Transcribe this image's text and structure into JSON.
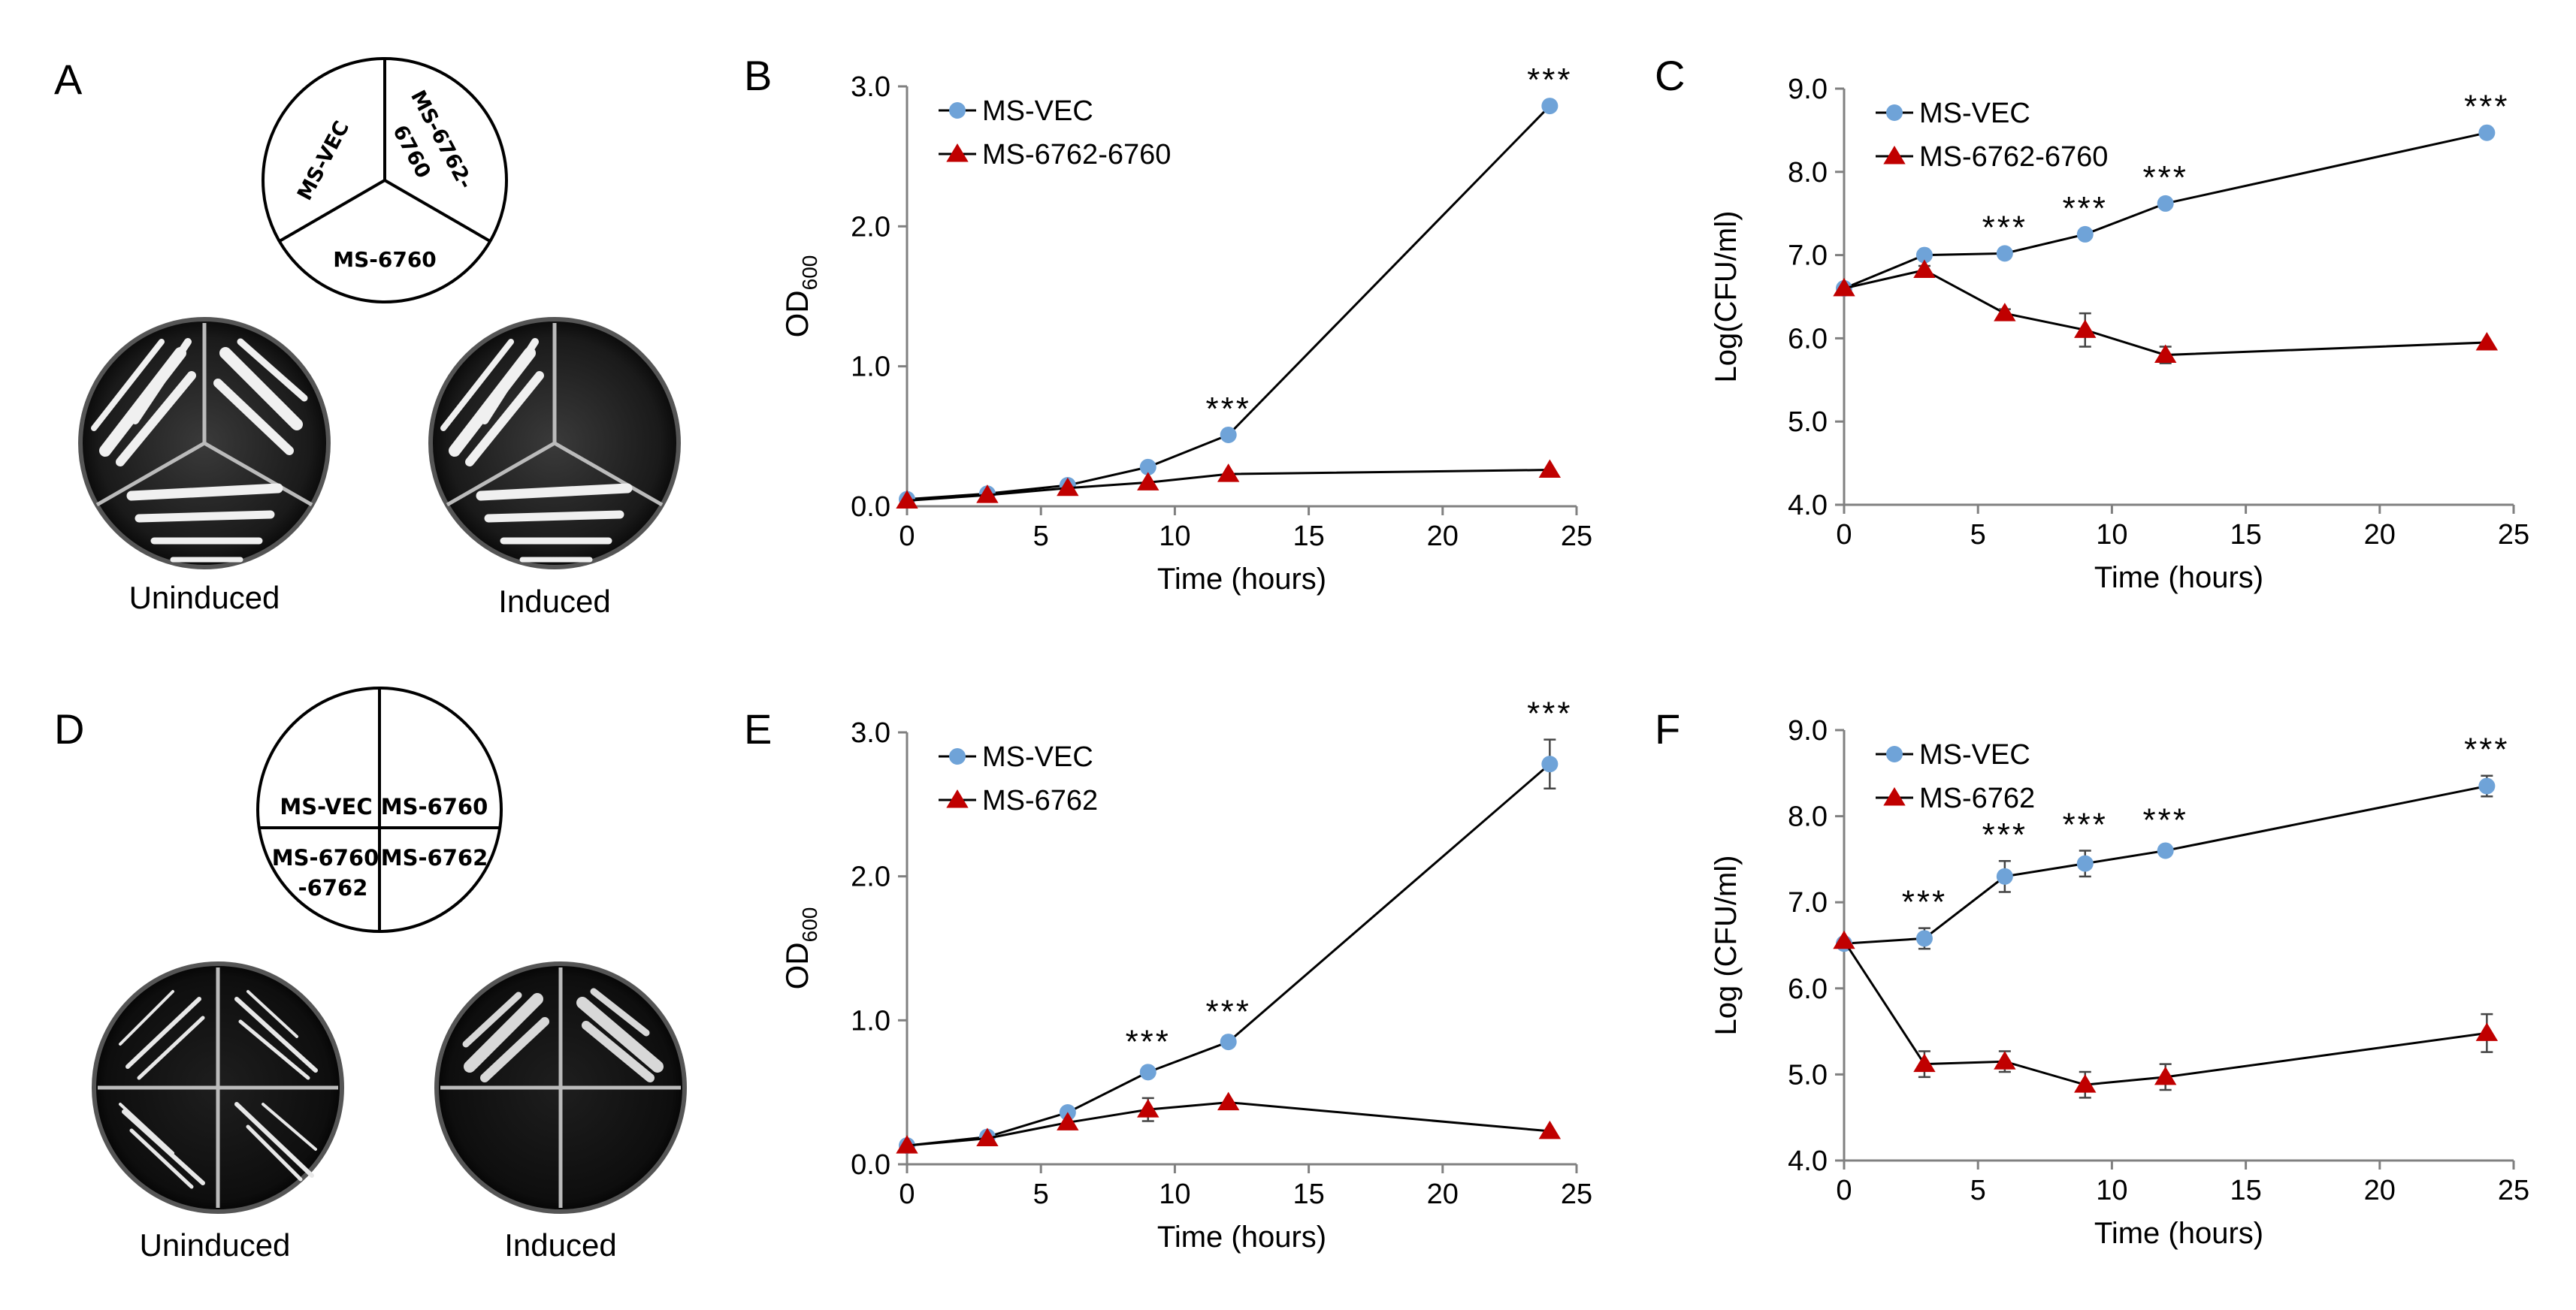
{
  "panels": {
    "A": {
      "letter": "A",
      "sectors": [
        "MS-VEC",
        "MS-6762-",
        "6760",
        "MS-6760"
      ],
      "uninduced": "Uninduced",
      "induced": "Induced"
    },
    "D": {
      "letter": "D",
      "sectors": [
        "MS-VEC",
        "MS-6760",
        "MS-6760",
        "-6762",
        "MS-6762"
      ],
      "uninduced": "Uninduced",
      "induced": "Induced"
    }
  },
  "colors": {
    "ms_vec": "#6fa3d8",
    "mutant": "#c00000",
    "line": "#000000",
    "axis": "#808080"
  },
  "chart_data": [
    {
      "id": "B",
      "letter": "B",
      "type": "line",
      "ylabel_main": "OD",
      "ylabel_sub": "600",
      "ylabel": "",
      "xlabel": "Time (hours)",
      "xlim": [
        0,
        25
      ],
      "ylim": [
        0,
        3
      ],
      "xticks": [
        0,
        5,
        10,
        15,
        20,
        25
      ],
      "xtick_labels": [
        "0",
        "5",
        "10",
        "15",
        "20",
        "25"
      ],
      "yticks": [
        0,
        1,
        2,
        3
      ],
      "ytick_labels": [
        "0.0",
        "1.0",
        "2.0",
        "3.0"
      ],
      "x": [
        0,
        3,
        6,
        9,
        12,
        24
      ],
      "series": [
        {
          "name": "MS-VEC",
          "marker": "circle",
          "values": [
            0.05,
            0.09,
            0.15,
            0.28,
            0.51,
            2.86
          ],
          "errors": [
            0,
            0,
            0,
            0,
            0,
            0
          ]
        },
        {
          "name": "MS-6762-6760",
          "marker": "triangle",
          "values": [
            0.04,
            0.08,
            0.13,
            0.17,
            0.23,
            0.26
          ],
          "errors": [
            0,
            0,
            0,
            0,
            0,
            0
          ]
        }
      ],
      "annotations": [
        {
          "x": 12,
          "y": 0.51,
          "text": "***"
        },
        {
          "x": 24,
          "y": 2.86,
          "text": "***"
        }
      ]
    },
    {
      "id": "C",
      "letter": "C",
      "type": "line",
      "ylabel": "Log(CFU/ml)",
      "xlabel": "Time (hours)",
      "xlim": [
        0,
        25
      ],
      "ylim": [
        4,
        9
      ],
      "xticks": [
        0,
        5,
        10,
        15,
        20,
        25
      ],
      "xtick_labels": [
        "0",
        "5",
        "10",
        "15",
        "20",
        "25"
      ],
      "yticks": [
        4,
        5,
        6,
        7,
        8,
        9
      ],
      "ytick_labels": [
        "4.0",
        "5.0",
        "6.0",
        "7.0",
        "8.0",
        "9.0"
      ],
      "x": [
        0,
        3,
        6,
        9,
        12,
        24
      ],
      "series": [
        {
          "name": "MS-VEC",
          "marker": "circle",
          "values": [
            6.6,
            7.0,
            7.02,
            7.25,
            7.62,
            8.47
          ],
          "errors": [
            0,
            0,
            0,
            0,
            0,
            0
          ]
        },
        {
          "name": "MS-6762-6760",
          "marker": "triangle",
          "values": [
            6.6,
            6.82,
            6.3,
            6.1,
            5.8,
            5.95
          ],
          "errors": [
            0,
            0.05,
            0.05,
            0.2,
            0.1,
            0
          ]
        }
      ],
      "annotations": [
        {
          "x": 6,
          "y": 7.02,
          "text": "***"
        },
        {
          "x": 9,
          "y": 7.25,
          "text": "***"
        },
        {
          "x": 12,
          "y": 7.62,
          "text": "***"
        },
        {
          "x": 24,
          "y": 8.47,
          "text": "***"
        }
      ]
    },
    {
      "id": "E",
      "letter": "E",
      "type": "line",
      "ylabel_main": "OD",
      "ylabel_sub": "600",
      "ylabel": "",
      "xlabel": "Time (hours)",
      "xlim": [
        0,
        25
      ],
      "ylim": [
        0,
        3
      ],
      "xticks": [
        0,
        5,
        10,
        15,
        20,
        25
      ],
      "xtick_labels": [
        "0",
        "5",
        "10",
        "15",
        "20",
        "25"
      ],
      "yticks": [
        0,
        1,
        2,
        3
      ],
      "ytick_labels": [
        "0.0",
        "1.0",
        "2.0",
        "3.0"
      ],
      "x": [
        0,
        3,
        6,
        9,
        12,
        24
      ],
      "series": [
        {
          "name": "MS-VEC",
          "marker": "circle",
          "values": [
            0.13,
            0.19,
            0.36,
            0.64,
            0.85,
            2.78
          ],
          "errors": [
            0,
            0,
            0,
            0.03,
            0.03,
            0.17
          ]
        },
        {
          "name": "MS-6762",
          "marker": "triangle",
          "values": [
            0.13,
            0.18,
            0.29,
            0.38,
            0.43,
            0.23
          ],
          "errors": [
            0,
            0,
            0,
            0.08,
            0,
            0
          ]
        }
      ],
      "annotations": [
        {
          "x": 9,
          "y": 0.64,
          "text": "***"
        },
        {
          "x": 12,
          "y": 0.85,
          "text": "***"
        },
        {
          "x": 24,
          "y": 2.78,
          "text": "***"
        }
      ]
    },
    {
      "id": "F",
      "letter": "F",
      "type": "line",
      "ylabel": "Log (CFU/ml)",
      "xlabel": "Time (hours)",
      "xlim": [
        0,
        25
      ],
      "ylim": [
        4,
        9
      ],
      "xticks": [
        0,
        5,
        10,
        15,
        20,
        25
      ],
      "xtick_labels": [
        "0",
        "5",
        "10",
        "15",
        "20",
        "25"
      ],
      "yticks": [
        4,
        5,
        6,
        7,
        8,
        9
      ],
      "ytick_labels": [
        "4.0",
        "5.0",
        "6.0",
        "7.0",
        "8.0",
        "9.0"
      ],
      "x": [
        0,
        3,
        6,
        9,
        12,
        24
      ],
      "series": [
        {
          "name": "MS-VEC",
          "marker": "circle",
          "values": [
            6.52,
            6.58,
            7.3,
            7.45,
            7.6,
            8.35
          ],
          "errors": [
            0,
            0.12,
            0.18,
            0.15,
            0.05,
            0.12
          ]
        },
        {
          "name": "MS-6762",
          "marker": "triangle",
          "values": [
            6.55,
            5.12,
            5.15,
            4.88,
            4.97,
            5.48
          ],
          "errors": [
            0,
            0.15,
            0.12,
            0.15,
            0.15,
            0.22
          ]
        }
      ],
      "annotations": [
        {
          "x": 3,
          "y": 6.58,
          "text": "***"
        },
        {
          "x": 6,
          "y": 7.3,
          "text": "***"
        },
        {
          "x": 9,
          "y": 7.45,
          "text": "***"
        },
        {
          "x": 12,
          "y": 7.6,
          "text": "***"
        },
        {
          "x": 24,
          "y": 8.35,
          "text": "***"
        }
      ]
    }
  ]
}
